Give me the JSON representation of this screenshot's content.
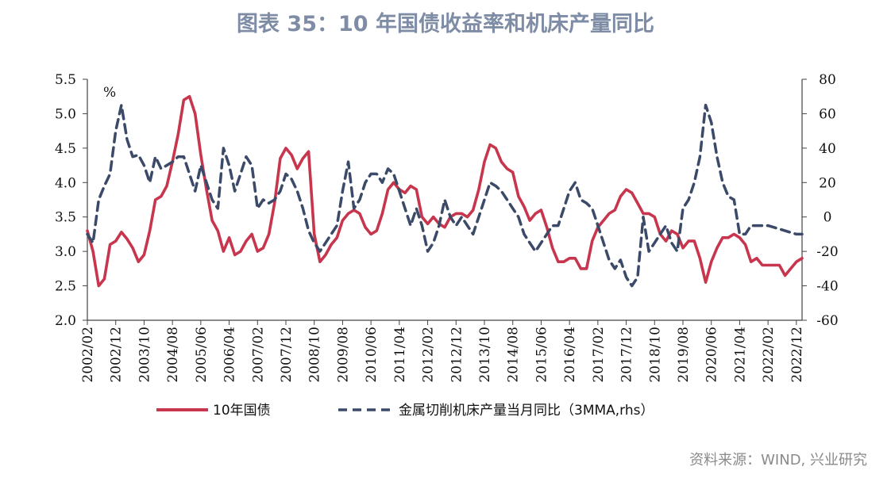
{
  "title": "图表 35：10 年国债收益率和机床产量同比",
  "source": "资料来源：WIND, 兴业研究",
  "chart_data": {
    "type": "line",
    "left_axis": {
      "unit": "%",
      "ticks": [
        "5.5",
        "5.0",
        "4.5",
        "4.0",
        "3.5",
        "3.0",
        "2.5",
        "2.0"
      ],
      "ylim": [
        2.0,
        5.5
      ]
    },
    "right_axis": {
      "ticks": [
        "80",
        "60",
        "40",
        "20",
        "0",
        "-20",
        "-40",
        "-60"
      ],
      "ylim": [
        -60,
        80
      ]
    },
    "x_ticks": [
      "2002/02",
      "2002/12",
      "2003/10",
      "2004/08",
      "2005/06",
      "2006/04",
      "2007/02",
      "2007/12",
      "2008/10",
      "2009/08",
      "2010/06",
      "2011/04",
      "2012/02",
      "2012/12",
      "2013/10",
      "2014/08",
      "2015/06",
      "2016/04",
      "2017/02",
      "2017/12",
      "2018/10",
      "2019/08",
      "2020/06",
      "2021/04",
      "2022/02",
      "2022/12"
    ],
    "x_range": [
      "2002/02",
      "2023/02"
    ],
    "grid": false,
    "legend_position": "bottom",
    "series": [
      {
        "name": "10年国债",
        "axis": "left",
        "color": "#c8364e",
        "style": "solid",
        "points": [
          [
            "2002/02",
            3.3
          ],
          [
            "2002/04",
            3.0
          ],
          [
            "2002/06",
            2.5
          ],
          [
            "2002/08",
            2.6
          ],
          [
            "2002/10",
            3.1
          ],
          [
            "2002/12",
            3.15
          ],
          [
            "2003/02",
            3.28
          ],
          [
            "2003/04",
            3.18
          ],
          [
            "2003/06",
            3.05
          ],
          [
            "2003/08",
            2.85
          ],
          [
            "2003/10",
            2.95
          ],
          [
            "2003/12",
            3.3
          ],
          [
            "2004/02",
            3.75
          ],
          [
            "2004/04",
            3.8
          ],
          [
            "2004/06",
            3.95
          ],
          [
            "2004/08",
            4.3
          ],
          [
            "2004/10",
            4.7
          ],
          [
            "2004/12",
            5.2
          ],
          [
            "2005/02",
            5.25
          ],
          [
            "2005/04",
            5.0
          ],
          [
            "2005/06",
            4.4
          ],
          [
            "2005/08",
            3.9
          ],
          [
            "2005/10",
            3.45
          ],
          [
            "2005/12",
            3.3
          ],
          [
            "2006/02",
            3.0
          ],
          [
            "2006/04",
            3.2
          ],
          [
            "2006/06",
            2.95
          ],
          [
            "2006/08",
            3.0
          ],
          [
            "2006/10",
            3.15
          ],
          [
            "2006/12",
            3.25
          ],
          [
            "2007/02",
            3.0
          ],
          [
            "2007/04",
            3.05
          ],
          [
            "2007/06",
            3.25
          ],
          [
            "2007/08",
            3.7
          ],
          [
            "2007/10",
            4.35
          ],
          [
            "2007/12",
            4.5
          ],
          [
            "2008/02",
            4.4
          ],
          [
            "2008/04",
            4.2
          ],
          [
            "2008/06",
            4.35
          ],
          [
            "2008/08",
            4.45
          ],
          [
            "2008/10",
            3.25
          ],
          [
            "2008/12",
            2.85
          ],
          [
            "2009/02",
            2.95
          ],
          [
            "2009/04",
            3.1
          ],
          [
            "2009/06",
            3.2
          ],
          [
            "2009/08",
            3.45
          ],
          [
            "2009/10",
            3.55
          ],
          [
            "2009/12",
            3.6
          ],
          [
            "2010/02",
            3.55
          ],
          [
            "2010/04",
            3.35
          ],
          [
            "2010/06",
            3.25
          ],
          [
            "2010/08",
            3.3
          ],
          [
            "2010/10",
            3.55
          ],
          [
            "2010/12",
            3.9
          ],
          [
            "2011/02",
            4.0
          ],
          [
            "2011/04",
            3.9
          ],
          [
            "2011/06",
            3.85
          ],
          [
            "2011/08",
            3.95
          ],
          [
            "2011/10",
            3.9
          ],
          [
            "2011/12",
            3.5
          ],
          [
            "2012/02",
            3.4
          ],
          [
            "2012/04",
            3.5
          ],
          [
            "2012/06",
            3.4
          ],
          [
            "2012/08",
            3.35
          ],
          [
            "2012/10",
            3.5
          ],
          [
            "2012/12",
            3.55
          ],
          [
            "2013/02",
            3.55
          ],
          [
            "2013/04",
            3.5
          ],
          [
            "2013/06",
            3.6
          ],
          [
            "2013/08",
            3.9
          ],
          [
            "2013/10",
            4.3
          ],
          [
            "2013/12",
            4.55
          ],
          [
            "2014/02",
            4.5
          ],
          [
            "2014/04",
            4.3
          ],
          [
            "2014/06",
            4.2
          ],
          [
            "2014/08",
            4.15
          ],
          [
            "2014/10",
            3.8
          ],
          [
            "2014/12",
            3.65
          ],
          [
            "2015/02",
            3.45
          ],
          [
            "2015/04",
            3.55
          ],
          [
            "2015/06",
            3.6
          ],
          [
            "2015/08",
            3.35
          ],
          [
            "2015/10",
            3.05
          ],
          [
            "2015/12",
            2.85
          ],
          [
            "2016/02",
            2.85
          ],
          [
            "2016/04",
            2.9
          ],
          [
            "2016/06",
            2.9
          ],
          [
            "2016/08",
            2.75
          ],
          [
            "2016/10",
            2.75
          ],
          [
            "2016/12",
            3.15
          ],
          [
            "2017/02",
            3.35
          ],
          [
            "2017/04",
            3.45
          ],
          [
            "2017/06",
            3.55
          ],
          [
            "2017/08",
            3.6
          ],
          [
            "2017/10",
            3.8
          ],
          [
            "2017/12",
            3.9
          ],
          [
            "2018/02",
            3.85
          ],
          [
            "2018/04",
            3.7
          ],
          [
            "2018/06",
            3.55
          ],
          [
            "2018/08",
            3.55
          ],
          [
            "2018/10",
            3.5
          ],
          [
            "2018/12",
            3.25
          ],
          [
            "2019/02",
            3.15
          ],
          [
            "2019/04",
            3.3
          ],
          [
            "2019/06",
            3.25
          ],
          [
            "2019/08",
            3.05
          ],
          [
            "2019/10",
            3.15
          ],
          [
            "2019/12",
            3.15
          ],
          [
            "2020/02",
            2.9
          ],
          [
            "2020/04",
            2.55
          ],
          [
            "2020/06",
            2.85
          ],
          [
            "2020/08",
            3.05
          ],
          [
            "2020/10",
            3.2
          ],
          [
            "2020/12",
            3.2
          ],
          [
            "2021/02",
            3.25
          ],
          [
            "2021/04",
            3.2
          ],
          [
            "2021/06",
            3.1
          ],
          [
            "2021/08",
            2.85
          ],
          [
            "2021/10",
            2.9
          ],
          [
            "2021/12",
            2.8
          ],
          [
            "2022/02",
            2.8
          ],
          [
            "2022/04",
            2.8
          ],
          [
            "2022/06",
            2.8
          ],
          [
            "2022/08",
            2.65
          ],
          [
            "2022/10",
            2.75
          ],
          [
            "2022/12",
            2.85
          ],
          [
            "2023/02",
            2.9
          ]
        ]
      },
      {
        "name": "金属切削机床产量当月同比（3MMA,rhs）",
        "axis": "right",
        "color": "#3b4a68",
        "style": "dashed",
        "points": [
          [
            "2002/02",
            -10
          ],
          [
            "2002/04",
            -15
          ],
          [
            "2002/06",
            10
          ],
          [
            "2002/08",
            18
          ],
          [
            "2002/10",
            25
          ],
          [
            "2002/12",
            50
          ],
          [
            "2003/02",
            65
          ],
          [
            "2003/04",
            45
          ],
          [
            "2003/06",
            35
          ],
          [
            "2003/08",
            36
          ],
          [
            "2003/10",
            30
          ],
          [
            "2003/12",
            20
          ],
          [
            "2004/02",
            35
          ],
          [
            "2004/04",
            28
          ],
          [
            "2004/06",
            30
          ],
          [
            "2004/08",
            32
          ],
          [
            "2004/10",
            35
          ],
          [
            "2004/12",
            35
          ],
          [
            "2005/02",
            25
          ],
          [
            "2005/04",
            15
          ],
          [
            "2005/06",
            30
          ],
          [
            "2005/08",
            20
          ],
          [
            "2005/10",
            10
          ],
          [
            "2005/12",
            5
          ],
          [
            "2006/02",
            40
          ],
          [
            "2006/04",
            30
          ],
          [
            "2006/06",
            15
          ],
          [
            "2006/08",
            25
          ],
          [
            "2006/10",
            35
          ],
          [
            "2006/12",
            30
          ],
          [
            "2007/02",
            5
          ],
          [
            "2007/04",
            10
          ],
          [
            "2007/06",
            8
          ],
          [
            "2007/08",
            10
          ],
          [
            "2007/10",
            15
          ],
          [
            "2007/12",
            25
          ],
          [
            "2008/02",
            22
          ],
          [
            "2008/04",
            15
          ],
          [
            "2008/06",
            5
          ],
          [
            "2008/08",
            -8
          ],
          [
            "2008/10",
            -15
          ],
          [
            "2008/12",
            -20
          ],
          [
            "2009/02",
            -15
          ],
          [
            "2009/04",
            -10
          ],
          [
            "2009/06",
            -5
          ],
          [
            "2009/08",
            15
          ],
          [
            "2009/10",
            32
          ],
          [
            "2009/12",
            5
          ],
          [
            "2010/02",
            10
          ],
          [
            "2010/04",
            20
          ],
          [
            "2010/06",
            25
          ],
          [
            "2010/08",
            25
          ],
          [
            "2010/10",
            20
          ],
          [
            "2010/12",
            28
          ],
          [
            "2011/02",
            25
          ],
          [
            "2011/04",
            15
          ],
          [
            "2011/06",
            5
          ],
          [
            "2011/08",
            -5
          ],
          [
            "2011/10",
            5
          ],
          [
            "2011/12",
            -5
          ],
          [
            "2012/02",
            -20
          ],
          [
            "2012/04",
            -15
          ],
          [
            "2012/06",
            -5
          ],
          [
            "2012/08",
            10
          ],
          [
            "2012/10",
            0
          ],
          [
            "2012/12",
            -5
          ],
          [
            "2013/02",
            0
          ],
          [
            "2013/04",
            -5
          ],
          [
            "2013/06",
            -10
          ],
          [
            "2013/08",
            0
          ],
          [
            "2013/10",
            10
          ],
          [
            "2013/12",
            20
          ],
          [
            "2014/02",
            18
          ],
          [
            "2014/04",
            15
          ],
          [
            "2014/06",
            10
          ],
          [
            "2014/08",
            5
          ],
          [
            "2014/10",
            0
          ],
          [
            "2014/12",
            -10
          ],
          [
            "2015/02",
            -15
          ],
          [
            "2015/04",
            -20
          ],
          [
            "2015/06",
            -15
          ],
          [
            "2015/08",
            -10
          ],
          [
            "2015/10",
            -5
          ],
          [
            "2015/12",
            -5
          ],
          [
            "2016/02",
            5
          ],
          [
            "2016/04",
            15
          ],
          [
            "2016/06",
            20
          ],
          [
            "2016/08",
            10
          ],
          [
            "2016/10",
            8
          ],
          [
            "2016/12",
            5
          ],
          [
            "2017/02",
            -5
          ],
          [
            "2017/04",
            -15
          ],
          [
            "2017/06",
            -25
          ],
          [
            "2017/08",
            -30
          ],
          [
            "2017/10",
            -25
          ],
          [
            "2017/12",
            -35
          ],
          [
            "2018/02",
            -40
          ],
          [
            "2018/04",
            -35
          ],
          [
            "2018/06",
            0
          ],
          [
            "2018/08",
            -20
          ],
          [
            "2018/10",
            -15
          ],
          [
            "2018/12",
            -10
          ],
          [
            "2019/02",
            -5
          ],
          [
            "2019/04",
            -15
          ],
          [
            "2019/06",
            -20
          ],
          [
            "2019/08",
            5
          ],
          [
            "2019/10",
            10
          ],
          [
            "2019/12",
            20
          ],
          [
            "2020/02",
            35
          ],
          [
            "2020/04",
            65
          ],
          [
            "2020/06",
            55
          ],
          [
            "2020/08",
            35
          ],
          [
            "2020/10",
            20
          ],
          [
            "2020/12",
            12
          ],
          [
            "2021/02",
            10
          ],
          [
            "2021/04",
            -10
          ],
          [
            "2021/06",
            -10
          ],
          [
            "2021/08",
            -5
          ],
          [
            "2021/10",
            -5
          ],
          [
            "2021/12",
            -5
          ],
          [
            "2022/02",
            -5
          ],
          [
            "2022/04",
            -6
          ],
          [
            "2022/06",
            -7
          ],
          [
            "2022/08",
            -8
          ],
          [
            "2022/10",
            -9
          ],
          [
            "2022/12",
            -10
          ],
          [
            "2023/02",
            -10
          ]
        ]
      }
    ]
  }
}
